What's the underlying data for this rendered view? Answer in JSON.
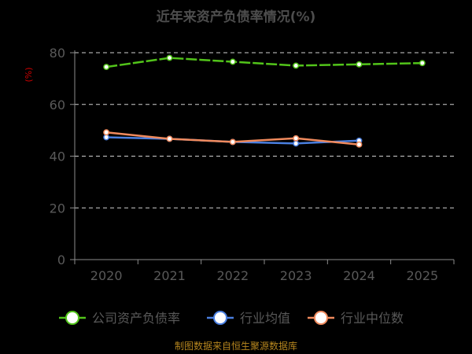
{
  "chart_data": {
    "type": "line",
    "title": "近年来资产负债率情况(%)",
    "ylabel": "(%)",
    "categories": [
      "2020",
      "2021",
      "2022",
      "2023",
      "2024",
      "2025"
    ],
    "ylim": [
      0,
      80
    ],
    "yticks": [
      0,
      20,
      40,
      60,
      80
    ],
    "grid": true,
    "legend_position": "bottom",
    "series": [
      {
        "name": "公司资产负债率",
        "color": "#52c41a",
        "values": [
          74.5,
          78.0,
          76.5,
          75.0,
          75.5,
          76.0
        ]
      },
      {
        "name": "行业均值",
        "color": "#4a7fe0",
        "values": [
          47.3,
          46.7,
          45.5,
          44.9,
          46.0,
          null
        ]
      },
      {
        "name": "行业中位数",
        "color": "#f08a5d",
        "values": [
          49.2,
          46.7,
          45.5,
          46.9,
          44.5,
          null
        ]
      }
    ]
  },
  "source": "制图数据来自恒生聚源数据库"
}
